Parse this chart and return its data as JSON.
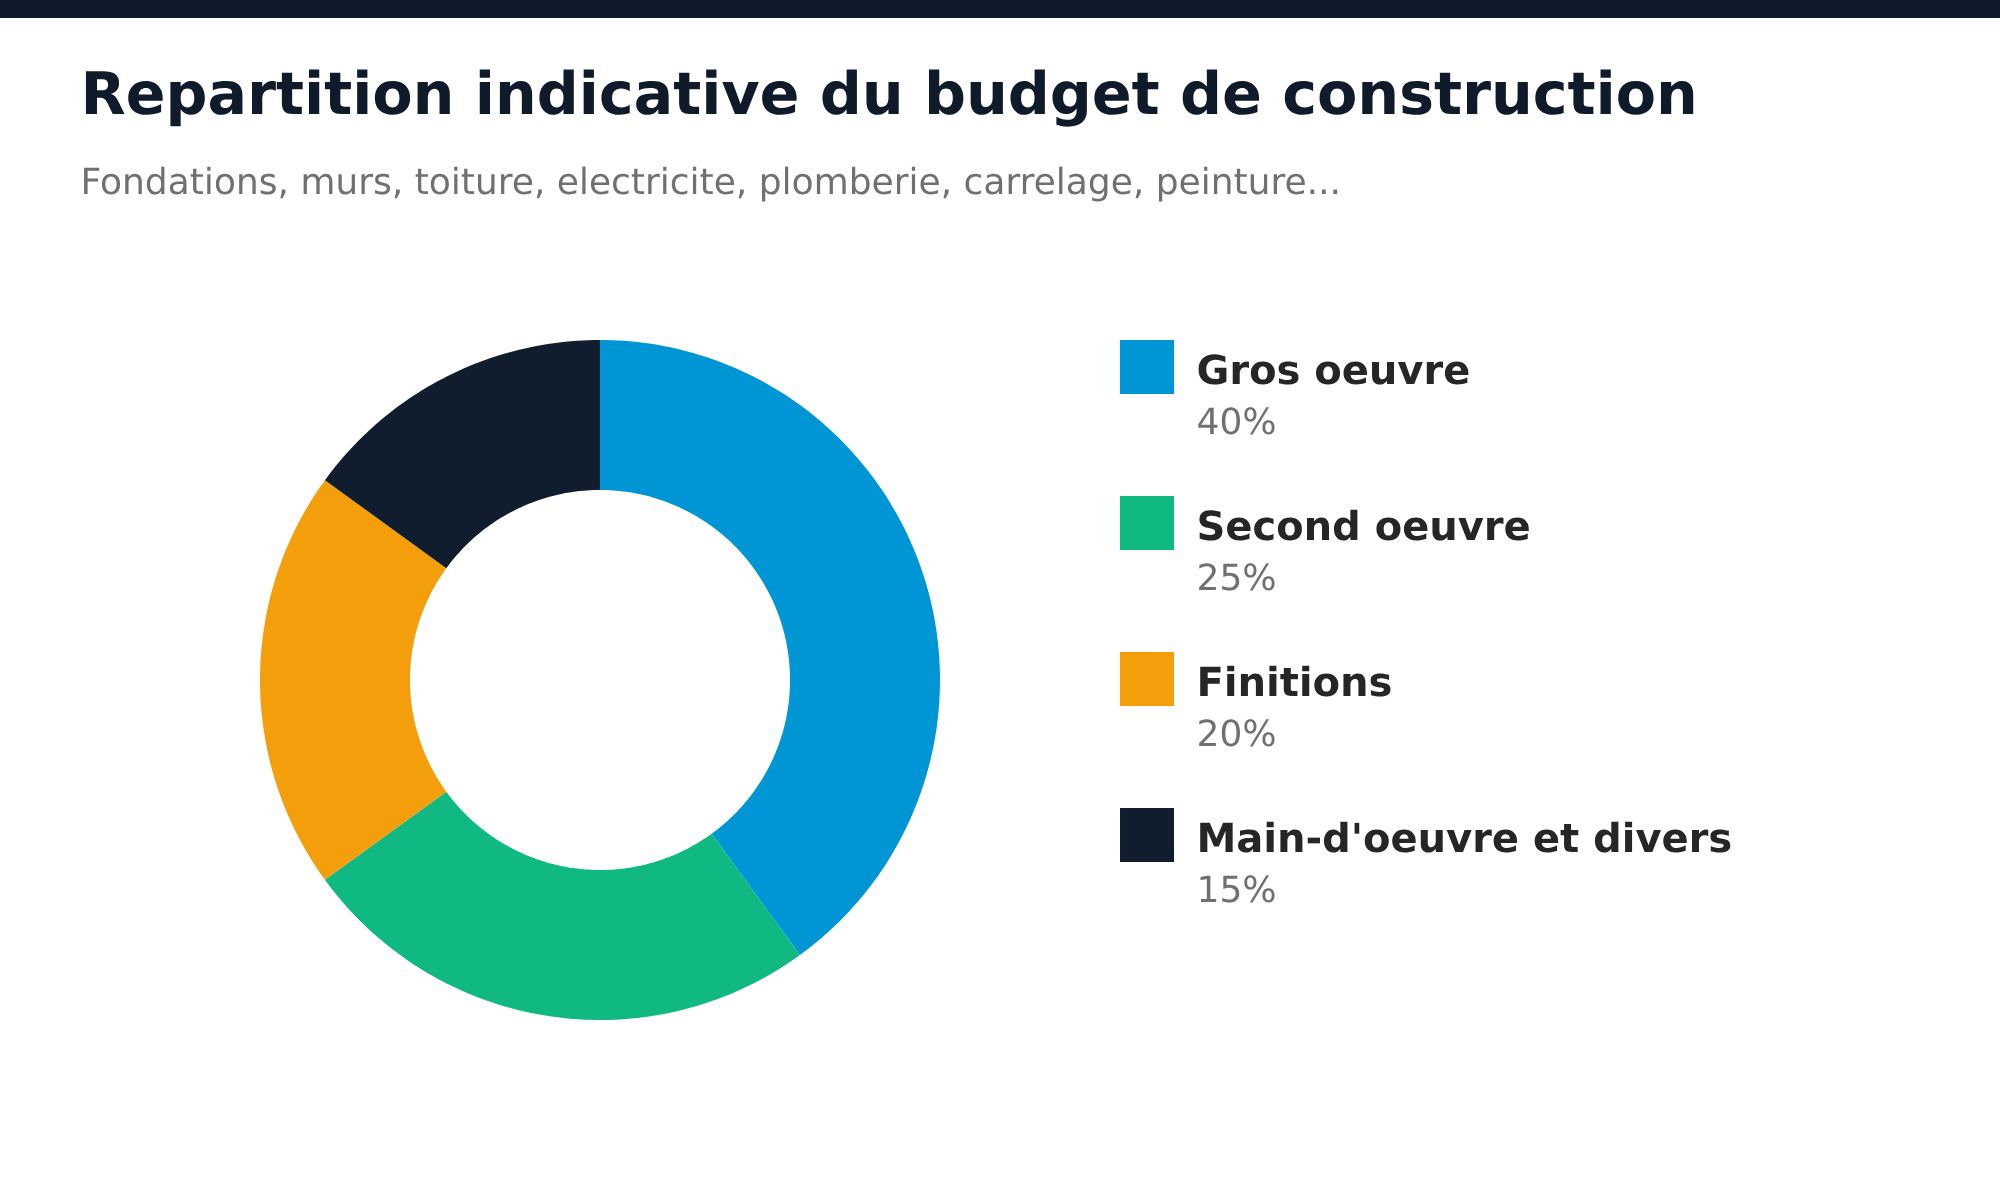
{
  "chart_data": {
    "type": "donut",
    "title": "Repartition indicative du budget de construction",
    "subtitle": "Fondations, murs, toiture, electricite, plomberie, carrelage, peinture...",
    "categories": [
      "Gros oeuvre",
      "Second oeuvre",
      "Finitions",
      "Main-d'oeuvre et divers"
    ],
    "values": [
      40,
      25,
      20,
      15
    ],
    "colors": [
      "#0096d6",
      "#10b981",
      "#f59e0b",
      "#0f1d2e"
    ],
    "value_labels": [
      "40%",
      "25%",
      "20%",
      "15%"
    ],
    "legend": "right"
  }
}
